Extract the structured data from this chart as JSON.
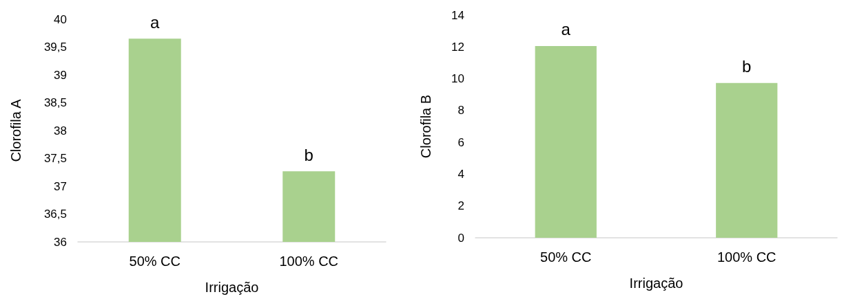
{
  "chart_data": [
    {
      "type": "bar",
      "categories": [
        "50% CC",
        "100% CC"
      ],
      "values": [
        39.65,
        37.27
      ],
      "color": "#a9d18e",
      "xlabel": "Irrigação",
      "ylabel": "Clorofila A",
      "ylim": [
        36,
        40
      ],
      "yticks": [
        36,
        {
          "value": 36.5,
          "label": "36,5"
        },
        37,
        {
          "value": 37.5,
          "label": "37,5"
        },
        38,
        {
          "value": 38.5,
          "label": "38,5"
        },
        39,
        {
          "value": 39.5,
          "label": "39,5"
        },
        40
      ],
      "grid": false,
      "annotations": [
        {
          "text": "a",
          "x": "50% CC",
          "y": 39.65
        },
        {
          "text": "b",
          "x": "100% CC",
          "y": 37.27
        }
      ]
    },
    {
      "type": "bar",
      "categories": [
        "50% CC",
        "100% CC"
      ],
      "values": [
        12.06,
        9.73
      ],
      "color": "#a9d18e",
      "xlabel": "Irrigação",
      "ylabel": "Clorofila B",
      "ylim": [
        0,
        14
      ],
      "yticks": [
        0,
        2,
        4,
        6,
        8,
        10,
        12,
        14
      ],
      "grid": false,
      "annotations": [
        {
          "text": "a",
          "x": "50% CC",
          "y": 12.06
        },
        {
          "text": "b",
          "x": "100% CC",
          "y": 9.73
        }
      ]
    }
  ]
}
